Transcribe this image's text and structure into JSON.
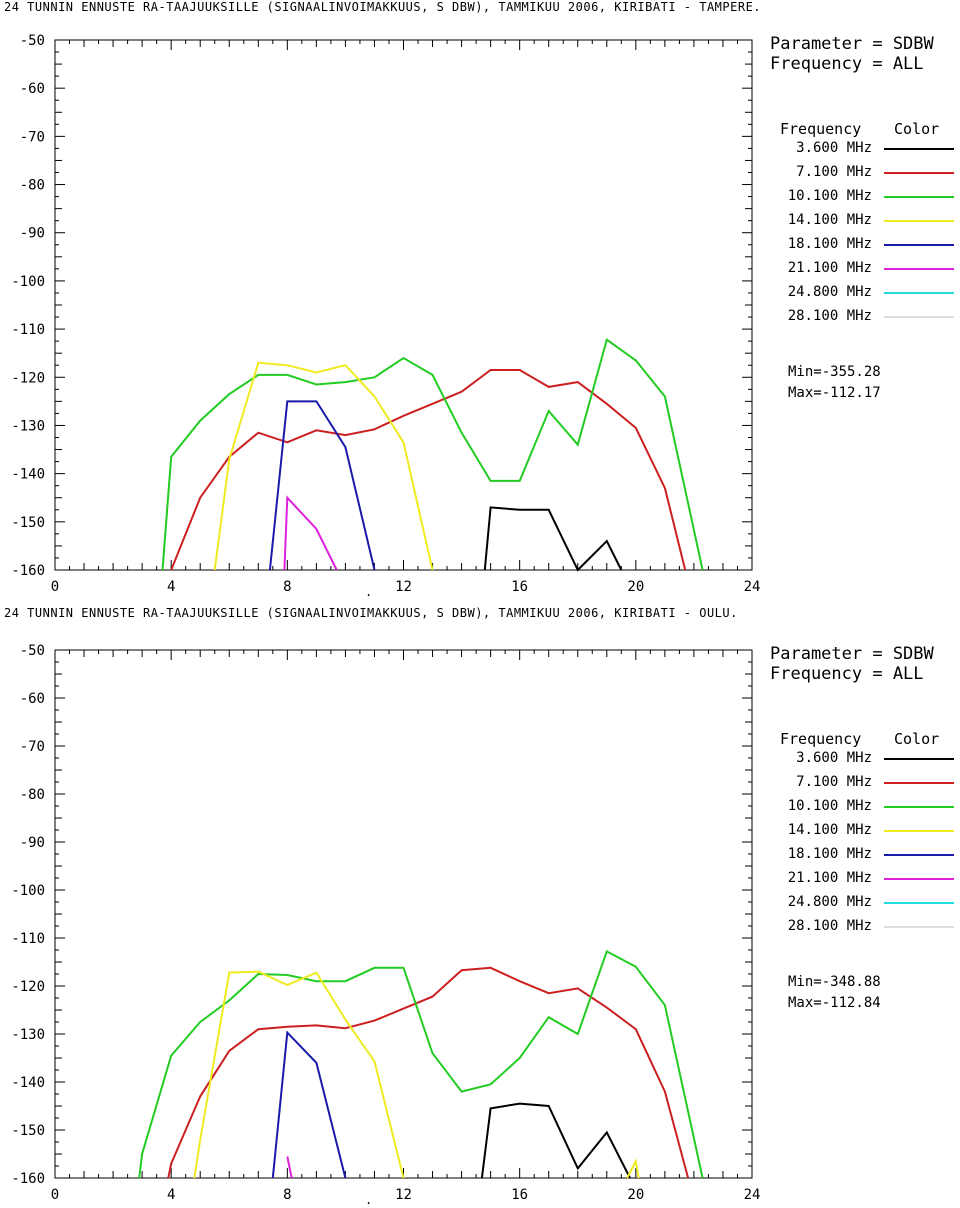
{
  "chart_data": [
    {
      "type": "line",
      "title": "24 TUNNIN ENNUSTE RA-TAAJUUKSILLE (SIGNAALINVOIMAKKUUS, S DBW), TAMMIKUU 2006, KIRIBATI - TAMPERE.",
      "xlim": [
        0,
        24
      ],
      "ylim": [
        -160,
        -50
      ],
      "x_ticks": [
        "0",
        "4",
        "8",
        "12",
        "16",
        "20",
        "24"
      ],
      "y_ticks": [
        "-50",
        "-60",
        "-70",
        "-80",
        "-90",
        "-100",
        "-110",
        "-120",
        "-130",
        "-140",
        "-150",
        "-160"
      ],
      "grid": false,
      "legend_placement": "right",
      "parameter": "Parameter = SDBW",
      "frequency": "Frequency = ALL",
      "legend_header_freq": "Frequency",
      "legend_header_color": "Color",
      "series": [
        {
          "name": "3.600 MHz",
          "color": "#000000",
          "points": [
            [
              14.8,
              -160
            ],
            [
              15,
              -147
            ],
            [
              16,
              -147.5
            ],
            [
              17,
              -147.5
            ],
            [
              18,
              -160
            ],
            [
              19,
              -154
            ],
            [
              19.5,
              -160
            ]
          ]
        },
        {
          "name": "7.100 MHz",
          "color": "#cc2020",
          "points": [
            [
              4,
              -160
            ],
            [
              5,
              -145
            ],
            [
              6,
              -136.5
            ],
            [
              7,
              -131.5
            ],
            [
              8,
              -133.5
            ],
            [
              9,
              -131
            ],
            [
              10,
              -132
            ],
            [
              11,
              -130.8
            ],
            [
              12,
              -128
            ],
            [
              13,
              -125.5
            ],
            [
              14,
              -123
            ],
            [
              15,
              -118.5
            ],
            [
              16,
              -118.5
            ],
            [
              17,
              -122
            ],
            [
              18,
              -121
            ],
            [
              19,
              -125.5
            ],
            [
              20,
              -130.5
            ],
            [
              21,
              -143
            ],
            [
              21.7,
              -160
            ]
          ]
        },
        {
          "name": "10.100 MHz",
          "color": "#22cc22",
          "points": [
            [
              3.7,
              -160
            ],
            [
              4,
              -136.5
            ],
            [
              5,
              -129
            ],
            [
              6,
              -123.5
            ],
            [
              7,
              -119.5
            ],
            [
              8,
              -119.5
            ],
            [
              9,
              -121.5
            ],
            [
              10,
              -121
            ],
            [
              11,
              -120
            ],
            [
              12,
              -116
            ],
            [
              13,
              -119.5
            ],
            [
              14,
              -131.5
            ],
            [
              15,
              -141.5
            ],
            [
              16,
              -141.5
            ],
            [
              17,
              -127
            ],
            [
              18,
              -134
            ],
            [
              19,
              -112.2
            ],
            [
              20,
              -116.5
            ],
            [
              21,
              -124
            ],
            [
              22.3,
              -160
            ]
          ]
        },
        {
          "name": "14.100 MHz",
          "color": "#f0ea20",
          "points": [
            [
              5.5,
              -160
            ],
            [
              6,
              -137
            ],
            [
              7,
              -117
            ],
            [
              8,
              -117.5
            ],
            [
              9,
              -119
            ],
            [
              10,
              -117.5
            ],
            [
              11,
              -124
            ],
            [
              12,
              -133.5
            ],
            [
              13,
              -160
            ]
          ]
        },
        {
          "name": "18.100 MHz",
          "color": "#1a1aaa",
          "points": [
            [
              7.4,
              -160
            ],
            [
              8,
              -125
            ],
            [
              9,
              -125
            ],
            [
              10,
              -134.5
            ],
            [
              11,
              -160
            ]
          ]
        },
        {
          "name": "21.100 MHz",
          "color": "#dd22dd",
          "points": [
            [
              7.9,
              -160
            ],
            [
              8,
              -145
            ],
            [
              9,
              -151.5
            ],
            [
              9.7,
              -160
            ]
          ]
        },
        {
          "name": "24.800 MHz",
          "color": "#22dddd",
          "points": []
        },
        {
          "name": "28.100 MHz",
          "color": "#dcdcdc",
          "points": []
        }
      ],
      "min_text": "Min=-355.28",
      "max_text": "Max=-112.17",
      "stray_mark": "."
    },
    {
      "type": "line",
      "title": "24 TUNNIN ENNUSTE RA-TAAJUUKSILLE (SIGNAALINVOIMAKKUUS, S DBW), TAMMIKUU 2006, KIRIBATI - OULU.",
      "xlim": [
        0,
        24
      ],
      "ylim": [
        -160,
        -50
      ],
      "x_ticks": [
        "0",
        "4",
        "8",
        "12",
        "16",
        "20",
        "24"
      ],
      "y_ticks": [
        "-50",
        "-60",
        "-70",
        "-80",
        "-90",
        "-100",
        "-110",
        "-120",
        "-130",
        "-140",
        "-150",
        "-160"
      ],
      "grid": false,
      "legend_placement": "right",
      "parameter": "Parameter = SDBW",
      "frequency": "Frequency = ALL",
      "legend_header_freq": "Frequency",
      "legend_header_color": "Color",
      "series": [
        {
          "name": "3.600 MHz",
          "color": "#000000",
          "points": [
            [
              14.7,
              -160
            ],
            [
              15,
              -145.5
            ],
            [
              16,
              -144.5
            ],
            [
              17,
              -145
            ],
            [
              18,
              -158
            ],
            [
              19,
              -150.5
            ],
            [
              19.8,
              -160
            ]
          ]
        },
        {
          "name": "7.100 MHz",
          "color": "#cc2020",
          "points": [
            [
              3.9,
              -160
            ],
            [
              4,
              -157
            ],
            [
              5,
              -143
            ],
            [
              6,
              -133.5
            ],
            [
              7,
              -129
            ],
            [
              8,
              -128.5
            ],
            [
              9,
              -128.2
            ],
            [
              10,
              -128.8
            ],
            [
              11,
              -127.2
            ],
            [
              12,
              -124.7
            ],
            [
              13,
              -122.2
            ],
            [
              14,
              -116.7
            ],
            [
              15,
              -116.2
            ],
            [
              16,
              -119
            ],
            [
              17,
              -121.5
            ],
            [
              18,
              -120.5
            ],
            [
              19,
              -124.5
            ],
            [
              20,
              -129
            ],
            [
              21,
              -142
            ],
            [
              21.8,
              -160
            ]
          ]
        },
        {
          "name": "10.100 MHz",
          "color": "#22cc22",
          "points": [
            [
              2.9,
              -160
            ],
            [
              3,
              -155
            ],
            [
              4,
              -134.5
            ],
            [
              5,
              -127.5
            ],
            [
              6,
              -123
            ],
            [
              7,
              -117.5
            ],
            [
              8,
              -117.7
            ],
            [
              9,
              -119
            ],
            [
              10,
              -119
            ],
            [
              11,
              -116.2
            ],
            [
              12,
              -116.2
            ],
            [
              13,
              -134
            ],
            [
              14,
              -142
            ],
            [
              15,
              -140.5
            ],
            [
              16,
              -135
            ],
            [
              17,
              -126.5
            ],
            [
              18,
              -130
            ],
            [
              19,
              -112.8
            ],
            [
              20,
              -116
            ],
            [
              21,
              -124
            ],
            [
              22.3,
              -160
            ]
          ]
        },
        {
          "name": "14.100 MHz",
          "color": "#f0ea20",
          "points": [
            [
              4.8,
              -160
            ],
            [
              5,
              -152
            ],
            [
              6,
              -117.2
            ],
            [
              7,
              -117
            ],
            [
              8,
              -119.8
            ],
            [
              9,
              -117.2
            ],
            [
              10,
              -127
            ],
            [
              11,
              -135.7
            ],
            [
              12,
              -160
            ]
          ]
        },
        {
          "name": "18.100 MHz",
          "color": "#1a1aaa",
          "points": [
            [
              7.5,
              -160
            ],
            [
              8,
              -129.7
            ],
            [
              9,
              -136
            ],
            [
              10,
              -160
            ]
          ]
        },
        {
          "name": "21.100 MHz",
          "color": "#dd22dd",
          "points": [
            [
              8,
              -155.5
            ],
            [
              8.15,
              -160
            ]
          ]
        },
        {
          "name": "24.800 MHz",
          "color": "#22dddd",
          "points": []
        },
        {
          "name": "28.100 MHz",
          "color": "#dcdcdc",
          "points": []
        },
        {
          "name": "",
          "color": "#f0ea20",
          "points": [
            [
              19.7,
              -160
            ],
            [
              20,
              -156.5
            ],
            [
              20.1,
              -160
            ]
          ]
        }
      ],
      "min_text": "Min=-348.88",
      "max_text": "Max=-112.84",
      "stray_mark": "."
    }
  ]
}
